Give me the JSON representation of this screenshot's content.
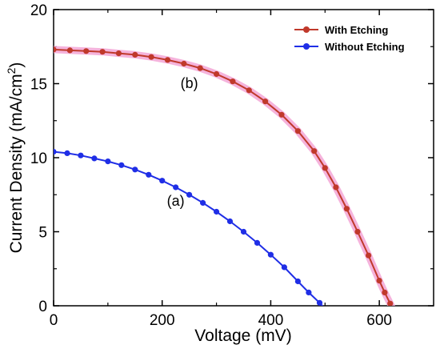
{
  "chart_data": {
    "type": "line",
    "xlabel": "Voltage (mV)",
    "ylabel_main": "Current Density (mA/cm",
    "ylabel_sup": "2",
    "ylabel_close": ")",
    "xlim": [
      0,
      700
    ],
    "ylim": [
      0,
      20
    ],
    "x_ticks": [
      0,
      200,
      400,
      600
    ],
    "y_ticks": [
      0,
      5,
      10,
      15,
      20
    ],
    "grid": false,
    "legend_position": "top-right",
    "series": [
      {
        "name": "With Etching",
        "color": "#c0392b",
        "halo": "#f3a6d6",
        "x": [
          0,
          30,
          60,
          90,
          120,
          150,
          180,
          210,
          240,
          270,
          300,
          330,
          360,
          390,
          420,
          450,
          480,
          500,
          520,
          540,
          560,
          580,
          600,
          610,
          620,
          630,
          635
        ],
        "y": [
          17.3,
          17.25,
          17.2,
          17.15,
          17.05,
          16.95,
          16.8,
          16.6,
          16.35,
          16.05,
          15.65,
          15.15,
          14.55,
          13.8,
          12.9,
          11.8,
          10.45,
          9.3,
          8.0,
          6.55,
          5.0,
          3.4,
          1.7,
          0.9,
          0.15,
          -0.6,
          -1.0
        ]
      },
      {
        "name": "Without Etching",
        "color": "#1f2ee6",
        "halo": null,
        "x": [
          0,
          25,
          50,
          75,
          100,
          125,
          150,
          175,
          200,
          225,
          250,
          275,
          300,
          325,
          350,
          375,
          400,
          425,
          450,
          470,
          490,
          505,
          515
        ],
        "y": [
          10.4,
          10.3,
          10.15,
          9.95,
          9.75,
          9.5,
          9.2,
          8.85,
          8.45,
          8.0,
          7.5,
          6.95,
          6.35,
          5.7,
          5.0,
          4.25,
          3.45,
          2.6,
          1.65,
          0.9,
          0.2,
          -0.4,
          -0.8
        ]
      }
    ],
    "annotations": [
      {
        "text": "(b)",
        "x": 250,
        "y": 14.7
      },
      {
        "text": "(a)",
        "x": 225,
        "y": 6.75
      }
    ]
  }
}
